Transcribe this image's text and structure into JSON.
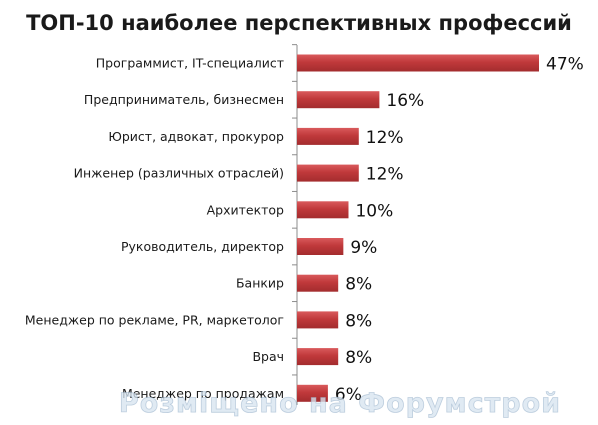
{
  "chart_data": {
    "type": "bar",
    "orientation": "horizontal",
    "title": "ТОП-10 наиболее перспективных профессий",
    "xlabel": "",
    "ylabel": "",
    "xlim": [
      0,
      47
    ],
    "grid": false,
    "legend": "none",
    "bar_color": "#c0393b",
    "categories": [
      "Программист, IT-специалист",
      "Предприниматель, бизнесмен",
      "Юрист, адвокат, прокурор",
      "Инженер (различных отраслей)",
      "Архитектор",
      "Руководитель, директор",
      "Банкир",
      "Менеджер по рекламе, PR, маркетолог",
      "Врач",
      "Менеджер по продажам"
    ],
    "values": [
      47,
      16,
      12,
      12,
      10,
      9,
      8,
      8,
      8,
      6
    ],
    "value_labels": [
      "47%",
      "16%",
      "12%",
      "12%",
      "10%",
      "9%",
      "8%",
      "8%",
      "8%",
      "6%"
    ]
  },
  "watermark": "Розміщено на Форумстрой"
}
